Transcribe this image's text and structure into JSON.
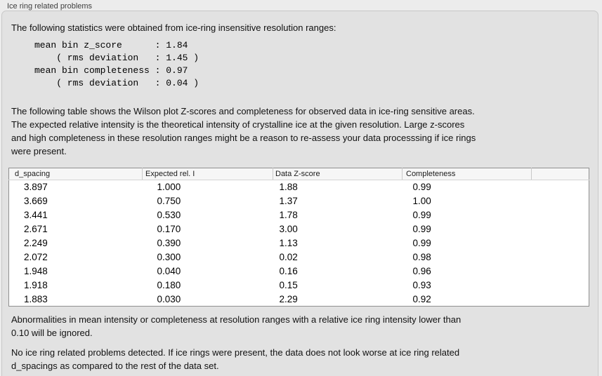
{
  "panel": {
    "title": "Ice ring related problems"
  },
  "intro": "The following statistics were obtained from ice-ring insensitive resolution ranges:",
  "stats_block": "mean bin z_score      : 1.84\n    ( rms deviation   : 1.45 )\nmean bin completeness : 0.97\n    ( rms deviation   : 0.04 )",
  "stats": {
    "mean_bin_z_score": "1.84",
    "z_score_rms_deviation": "1.45",
    "mean_bin_completeness": "0.97",
    "completeness_rms_deviation": "0.04"
  },
  "table_intro": "The following table shows the Wilson plot Z-scores and completeness for observed data in ice-ring sensitive areas.\nThe expected relative intensity is the theoretical intensity of crystalline ice at the given resolution. Large z-scores\nand high completeness in these resolution ranges might be a reason to re-assess your data processsing if ice rings\nwere present.",
  "table": {
    "columns": [
      "d_spacing",
      "Expected rel. I",
      "Data Z-score",
      "Completeness",
      ""
    ],
    "rows": [
      [
        "3.897",
        "1.000",
        "1.88",
        "0.99"
      ],
      [
        "3.669",
        "0.750",
        "1.37",
        "1.00"
      ],
      [
        "3.441",
        "0.530",
        "1.78",
        "0.99"
      ],
      [
        "2.671",
        "0.170",
        "3.00",
        "0.99"
      ],
      [
        "2.249",
        "0.390",
        "1.13",
        "0.99"
      ],
      [
        "2.072",
        "0.300",
        "0.02",
        "0.98"
      ],
      [
        "1.948",
        "0.040",
        "0.16",
        "0.96"
      ],
      [
        "1.918",
        "0.180",
        "0.15",
        "0.93"
      ],
      [
        "1.883",
        "0.030",
        "2.29",
        "0.92"
      ]
    ]
  },
  "note_ignore": "Abnormalities in mean intensity or completeness at resolution ranges with a relative ice ring intensity lower than\n0.10 will be ignored.",
  "conclusion": "No ice ring related problems detected. If ice rings were present, the data does not look worse at ice ring related\nd_spacings as compared to the rest of the data set.",
  "colors": {
    "outer_background": "#ececec",
    "panel_background": "#e2e2e2",
    "panel_border": "#c8c8c8",
    "table_border": "#8f8f8f",
    "header_background": "#f6f6f6"
  }
}
